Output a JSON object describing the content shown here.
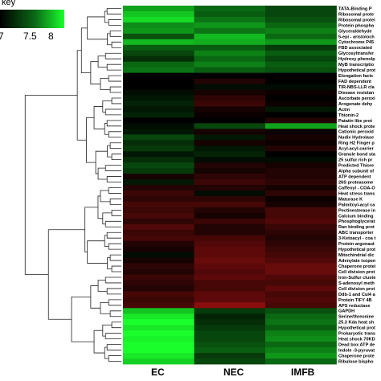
{
  "chart_data": {
    "type": "heatmap",
    "key": {
      "title": "key",
      "ticks": [
        "7",
        "7.5",
        "8"
      ]
    },
    "columns": [
      "EC",
      "NEC",
      "IMFB"
    ],
    "rows": [
      "TATA-Binding P",
      "Ribosomal prote",
      "Ribosomal protei",
      "Protein phospha",
      "Glyceraldehyde",
      "5-epi - aristoloch",
      "Cytochrome P45",
      "FBD associated",
      "Glycosyltransfer",
      "Hydroxy phenolp",
      "MyB transcriptio",
      "Hypothetical prot",
      "Elongation factc",
      "FAD dependent",
      "TIR-NBS-LLR cla",
      "Disease resistan",
      "Ascorbate peroxi",
      "Arogenate dehy",
      "Actin",
      "Thionin-2",
      "Patatin like prot",
      "Heat shock prote",
      "Cationic peroxid",
      "Nudix Hydrolase",
      "Ring H2 Finger p",
      "Acyl-acyl-carrier",
      "Granule bond sta",
      "25 sulfur rich pr",
      "Predicted Thiore",
      "Alpha subunit of",
      "ATP dependent",
      "26S proteasome",
      "Caffeoyl - COA-O",
      "Heat stress trans",
      "Maturase K",
      "Palmitoyl-acyl ca",
      "Pectinesterase in",
      "Calcium binding",
      "Phosphoglycerat",
      "Ran binding prot",
      "ABC transporter",
      "3-Ketoacyl - coa t",
      "Protein argonaut",
      "Hypothetical prot",
      "Mitochindrial dic",
      "Adenylate isopen",
      "Chaperone protei",
      "Cell division prot",
      "Iron-Sulfur cluste",
      "S-adenosyl meth",
      "Cell division prot",
      "Ddb-1 and Cul4 a",
      "Protein TIFY 4B",
      "APS reductase",
      "GAPDH",
      "Serine/threonine",
      "25.3 Kda heat sh",
      "Hypothetical prot",
      "Prokaryotic trans",
      "Heat shock 70KD",
      "Dead box ATP de",
      "Indole -3-pyruvat",
      "Chaperone prote",
      "Ribulose bispho"
    ],
    "values": [
      [
        1.4,
        0.9,
        0.6
      ],
      [
        1.7,
        0.8,
        0.6
      ],
      [
        1.9,
        1.0,
        0.7
      ],
      [
        1.2,
        1.3,
        0.9
      ],
      [
        1.3,
        1.0,
        1.1
      ],
      [
        0.7,
        1.6,
        0.9
      ],
      [
        1.6,
        1.5,
        1.3
      ],
      [
        0.8,
        0.8,
        0.5
      ],
      [
        0.6,
        1.1,
        0.8
      ],
      [
        0.4,
        0.9,
        0.6
      ],
      [
        0.9,
        1.1,
        0.8
      ],
      [
        1.0,
        0.8,
        0.7
      ],
      [
        0.0,
        0.0,
        0.0
      ],
      [
        0.0,
        -0.3,
        0.0
      ],
      [
        0.0,
        0.1,
        0.1
      ],
      [
        0.1,
        -0.2,
        -0.1
      ],
      [
        0.2,
        -0.4,
        0.0
      ],
      [
        0.3,
        -0.5,
        -0.1
      ],
      [
        0.2,
        -0.2,
        0.2
      ],
      [
        0.3,
        -0.1,
        0.0
      ],
      [
        0.0,
        0.0,
        -0.3
      ],
      [
        0.1,
        0.6,
        1.4
      ],
      [
        0.2,
        -0.2,
        -0.1
      ],
      [
        0.6,
        0.2,
        -0.2
      ],
      [
        0.4,
        -0.2,
        -0.1
      ],
      [
        0.5,
        0.2,
        -0.3
      ],
      [
        0.2,
        0.3,
        0.0
      ],
      [
        0.4,
        0.1,
        0.1
      ],
      [
        0.6,
        -0.3,
        -0.2
      ],
      [
        0.5,
        -0.2,
        -0.3
      ],
      [
        -0.2,
        -0.4,
        -0.3
      ],
      [
        0.2,
        -0.5,
        -0.4
      ],
      [
        -0.3,
        -0.3,
        -0.2
      ],
      [
        -0.5,
        0.1,
        -0.4
      ],
      [
        -0.4,
        -0.4,
        -0.1
      ],
      [
        -0.6,
        -0.6,
        -0.2
      ],
      [
        -0.5,
        -0.3,
        -0.6
      ],
      [
        -0.6,
        -0.2,
        -0.6
      ],
      [
        -0.4,
        -0.5,
        -0.7
      ],
      [
        -0.7,
        -0.3,
        -0.5
      ],
      [
        -0.5,
        -0.3,
        -0.4
      ],
      [
        -0.6,
        -0.6,
        -0.3
      ],
      [
        -0.3,
        -0.7,
        -0.4
      ],
      [
        -0.2,
        -0.8,
        -0.5
      ],
      [
        0.1,
        -0.8,
        -0.6
      ],
      [
        -0.2,
        -0.9,
        -0.7
      ],
      [
        -0.4,
        -0.8,
        -0.9
      ],
      [
        -0.3,
        -0.7,
        -0.9
      ],
      [
        -0.5,
        -0.8,
        -0.7
      ],
      [
        -0.4,
        -0.6,
        -0.6
      ],
      [
        -0.3,
        -0.6,
        -0.8
      ],
      [
        -0.6,
        -0.8,
        -0.6
      ],
      [
        -0.5,
        -0.8,
        -0.7
      ],
      [
        -0.6,
        -1.2,
        -0.6
      ],
      [
        1.7,
        0.5,
        0.7
      ],
      [
        2.0,
        0.3,
        0.9
      ],
      [
        2.2,
        0.4,
        1.0
      ],
      [
        2.0,
        0.5,
        0.8
      ],
      [
        2.3,
        0.6,
        1.1
      ],
      [
        2.1,
        0.6,
        1.2
      ],
      [
        2.4,
        0.7,
        0.9
      ],
      [
        2.3,
        0.8,
        1.1
      ],
      [
        2.0,
        0.5,
        1.3
      ],
      [
        1.8,
        0.6,
        0.9
      ]
    ],
    "colors": {
      "low": "#ff1a1a",
      "mid": "#000000",
      "high": "#1aff2c"
    },
    "legend_position": "top-left"
  }
}
